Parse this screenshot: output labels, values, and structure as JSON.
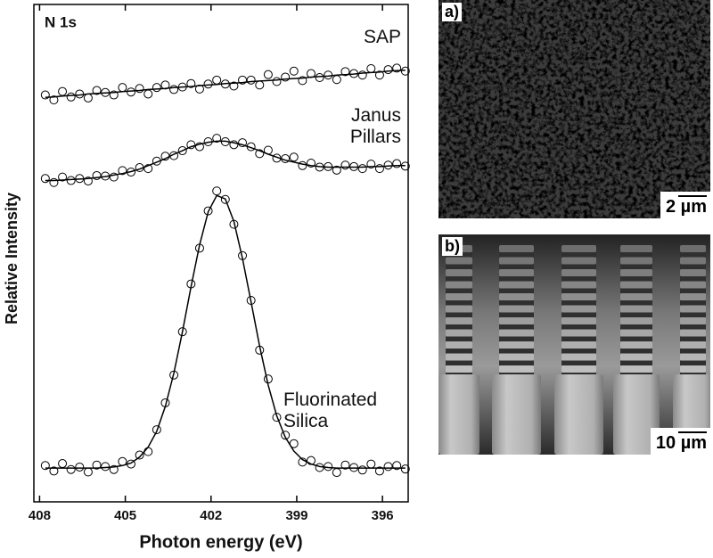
{
  "chart_data": {
    "type": "scatter",
    "annotation": "N 1s",
    "xlabel": "Photon energy (eV)",
    "ylabel": "Relative Intensity",
    "xlim": [
      408.2,
      395.1
    ],
    "xticks": [
      408,
      405,
      402,
      399,
      396
    ],
    "ylim": [
      0,
      100
    ],
    "marker_color": "#000000",
    "x": [
      407.8,
      407.5,
      407.2,
      406.9,
      406.6,
      406.3,
      406.0,
      405.7,
      405.4,
      405.1,
      404.8,
      404.5,
      404.2,
      403.9,
      403.6,
      403.3,
      403.0,
      402.7,
      402.4,
      402.1,
      401.8,
      401.5,
      401.2,
      400.9,
      400.6,
      400.3,
      400.0,
      399.7,
      399.4,
      399.1,
      398.8,
      398.5,
      398.2,
      397.9,
      397.6,
      397.3,
      397.0,
      396.7,
      396.4,
      396.1,
      395.8,
      395.5,
      395.2
    ],
    "series": [
      {
        "name": "SAP",
        "values": [
          81.8,
          80.8,
          82.5,
          81.4,
          82.0,
          81.2,
          82.7,
          82.3,
          81.8,
          83.3,
          82.4,
          83.1,
          82.0,
          83.3,
          83.8,
          82.9,
          83.4,
          84.1,
          83.0,
          84.0,
          84.8,
          84.0,
          83.6,
          84.8,
          84.8,
          83.8,
          85.9,
          84.5,
          85.4,
          86.6,
          84.7,
          86.1,
          85.3,
          85.8,
          84.9,
          86.5,
          86.1,
          85.8,
          87.1,
          85.8,
          86.9,
          87.2,
          86.6
        ],
        "fit": [
          81.3,
          81.4,
          81.6,
          81.7,
          81.8,
          82.0,
          82.1,
          82.2,
          82.3,
          82.5,
          82.6,
          82.7,
          82.9,
          83.0,
          83.1,
          83.3,
          83.4,
          83.5,
          83.7,
          83.8,
          83.9,
          84.1,
          84.2,
          84.3,
          84.5,
          84.6,
          84.7,
          84.8,
          85.0,
          85.1,
          85.2,
          85.4,
          85.5,
          85.6,
          85.8,
          85.9,
          86.0,
          86.2,
          86.3,
          86.4,
          86.6,
          86.7,
          86.8
        ]
      },
      {
        "name": "Janus Pillars",
        "values": [
          65.0,
          64.2,
          65.3,
          64.6,
          65.0,
          64.5,
          65.6,
          65.5,
          65.3,
          66.6,
          66.3,
          67.2,
          67.0,
          68.5,
          69.5,
          69.6,
          70.6,
          71.8,
          71.4,
          72.4,
          73.1,
          72.4,
          71.8,
          72.2,
          71.4,
          70.0,
          70.7,
          69.1,
          69.0,
          69.3,
          67.6,
          68.1,
          67.3,
          67.4,
          66.7,
          67.7,
          67.4,
          67.0,
          67.9,
          67.0,
          67.7,
          68.0,
          67.5
        ],
        "fit": [
          64.6,
          64.6,
          64.7,
          64.8,
          64.9,
          65.0,
          65.2,
          65.4,
          65.7,
          66.0,
          66.4,
          66.9,
          67.6,
          68.3,
          69.0,
          69.9,
          70.6,
          71.4,
          71.9,
          72.3,
          72.5,
          72.5,
          72.2,
          71.8,
          71.2,
          70.6,
          69.9,
          69.3,
          68.7,
          68.3,
          67.9,
          67.6,
          67.4,
          67.3,
          67.3,
          67.3,
          67.3,
          67.3,
          67.4,
          67.4,
          67.5,
          67.6,
          67.6
        ]
      },
      {
        "name": "Fluorinated Silica",
        "values": [
          7.3,
          6.2,
          7.7,
          6.5,
          7.0,
          6.0,
          7.4,
          7.1,
          6.5,
          8.1,
          7.6,
          9.4,
          10.1,
          14.5,
          19.9,
          25.5,
          34.2,
          43.8,
          51.0,
          58.5,
          62.5,
          60.8,
          55.8,
          49.5,
          40.5,
          30.5,
          24.7,
          17.0,
          13.4,
          11.7,
          8.0,
          8.3,
          6.9,
          7.1,
          5.9,
          7.4,
          6.9,
          6.4,
          7.6,
          6.2,
          7.1,
          7.3,
          6.6
        ],
        "fit": [
          6.8,
          6.8,
          6.8,
          6.8,
          6.8,
          6.8,
          6.8,
          6.9,
          7.0,
          7.3,
          7.8,
          9.0,
          11.0,
          14.2,
          19.2,
          25.9,
          34.2,
          43.2,
          51.7,
          58.3,
          61.6,
          60.9,
          56.4,
          49.0,
          40.2,
          31.3,
          23.5,
          17.3,
          13.0,
          10.2,
          8.5,
          7.6,
          7.1,
          6.9,
          6.8,
          6.8,
          6.8,
          6.8,
          6.8,
          6.8,
          6.8,
          6.8,
          6.8
        ]
      }
    ]
  },
  "images": [
    {
      "label": "a)",
      "scale_bar": "2 µm"
    },
    {
      "label": "b)",
      "scale_bar": "10 µm"
    }
  ]
}
